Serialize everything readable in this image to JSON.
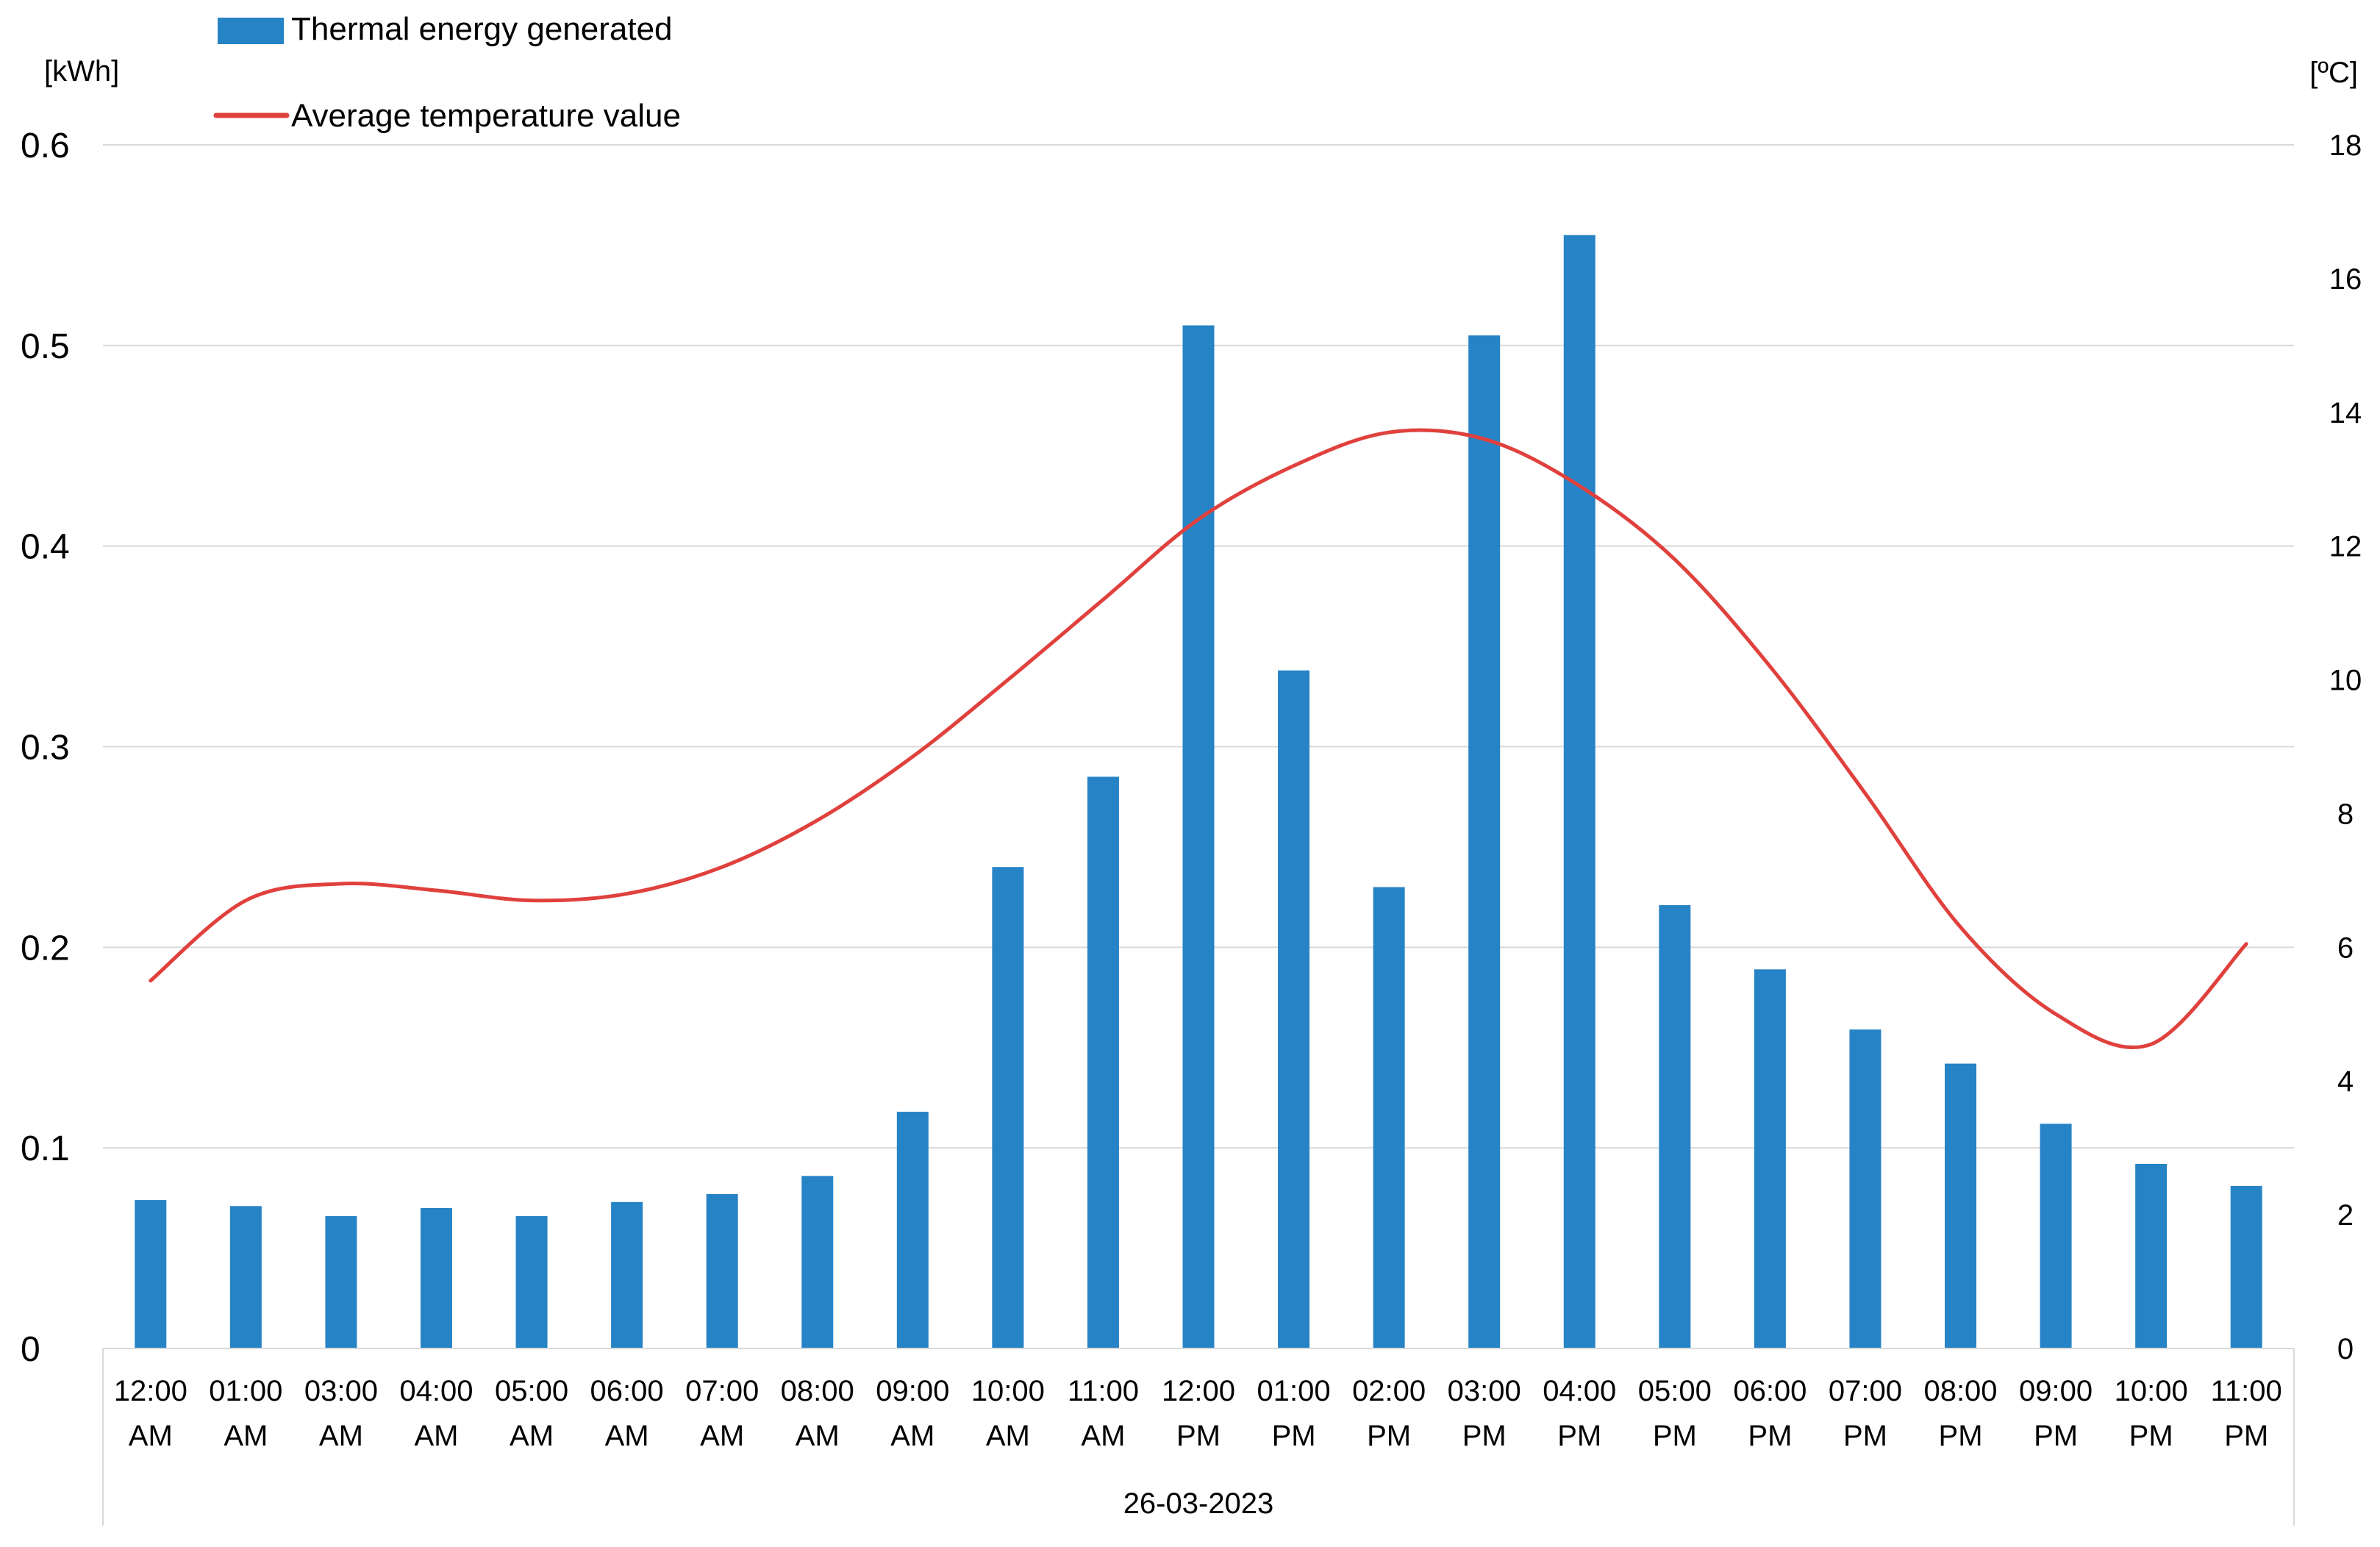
{
  "chart_data": {
    "type": "bar+line",
    "title": "",
    "date_label": "26-03-2023",
    "y_left_unit": "[kWh]",
    "y_right_unit": "[ºC]",
    "y_left_range": [
      0,
      0.6
    ],
    "y_left_ticks": [
      "0",
      "0.1",
      "0.2",
      "0.3",
      "0.4",
      "0.5",
      "0.6"
    ],
    "y_left_tick_values": [
      0,
      0.1,
      0.2,
      0.3,
      0.4,
      0.5,
      0.6
    ],
    "y_right_range": [
      0,
      18
    ],
    "y_right_ticks": [
      "0",
      "2",
      "4",
      "6",
      "8",
      "10",
      "12",
      "14",
      "16",
      "18"
    ],
    "y_right_tick_values": [
      0,
      2,
      4,
      6,
      8,
      10,
      12,
      14,
      16,
      18
    ],
    "grid": true,
    "legend_position": "top-left",
    "categories": [
      {
        "time": "12:00",
        "period": "AM"
      },
      {
        "time": "01:00",
        "period": "AM"
      },
      {
        "time": "03:00",
        "period": "AM"
      },
      {
        "time": "04:00",
        "period": "AM"
      },
      {
        "time": "05:00",
        "period": "AM"
      },
      {
        "time": "06:00",
        "period": "AM"
      },
      {
        "time": "07:00",
        "period": "AM"
      },
      {
        "time": "08:00",
        "period": "AM"
      },
      {
        "time": "09:00",
        "period": "AM"
      },
      {
        "time": "10:00",
        "period": "AM"
      },
      {
        "time": "11:00",
        "period": "AM"
      },
      {
        "time": "12:00",
        "period": "PM"
      },
      {
        "time": "01:00",
        "period": "PM"
      },
      {
        "time": "02:00",
        "period": "PM"
      },
      {
        "time": "03:00",
        "period": "PM"
      },
      {
        "time": "04:00",
        "period": "PM"
      },
      {
        "time": "05:00",
        "period": "PM"
      },
      {
        "time": "06:00",
        "period": "PM"
      },
      {
        "time": "07:00",
        "period": "PM"
      },
      {
        "time": "08:00",
        "period": "PM"
      },
      {
        "time": "09:00",
        "period": "PM"
      },
      {
        "time": "10:00",
        "period": "PM"
      },
      {
        "time": "11:00",
        "period": "PM"
      }
    ],
    "series": [
      {
        "name": "Thermal energy generated",
        "kind": "bar",
        "axis": "left",
        "color": "#2683C6",
        "values": [
          0.074,
          0.071,
          0.066,
          0.07,
          0.066,
          0.073,
          0.077,
          0.086,
          0.118,
          0.24,
          0.285,
          0.51,
          0.338,
          0.23,
          0.505,
          0.555,
          0.221,
          0.189,
          0.159,
          0.142,
          0.112,
          0.092,
          0.081
        ]
      },
      {
        "name": "Average temperature value",
        "kind": "line",
        "axis": "right",
        "color": "#E0413D",
        "values": [
          5.5,
          6.7,
          6.95,
          6.85,
          6.7,
          6.8,
          7.2,
          7.9,
          8.85,
          10.0,
          11.2,
          12.4,
          13.2,
          13.7,
          13.6,
          12.9,
          11.8,
          10.2,
          8.3,
          6.3,
          5.0,
          4.55,
          6.05
        ]
      }
    ]
  }
}
